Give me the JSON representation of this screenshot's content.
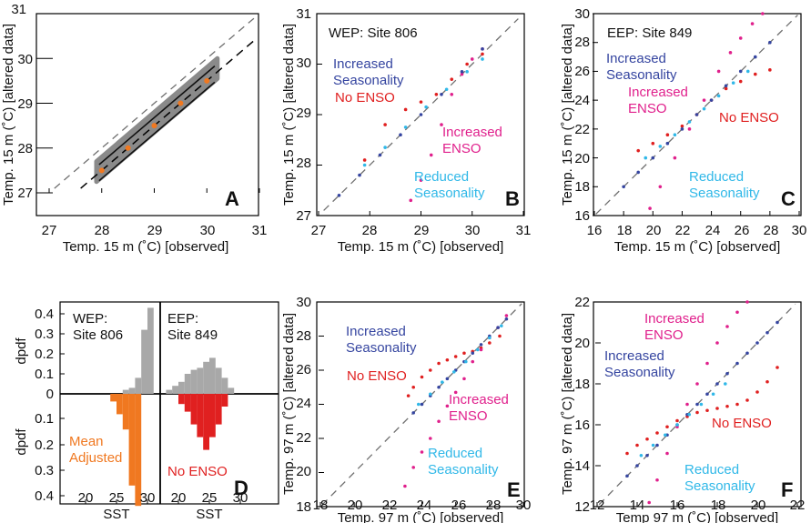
{
  "colors": {
    "observed": "#777777",
    "mean_adjusted": "#f07820",
    "no_enso": "#e02020",
    "increased_enso": "#e0208c",
    "increased_seasonality": "#3545a0",
    "reduced_seasonality": "#30b8e8",
    "hist_gray": "#a8a8a8"
  },
  "chart_data": [
    {
      "id": "A",
      "type": "scatter",
      "panel_label": "A",
      "xlabel": "Temp. 15 m (˚C) [observed]",
      "ylabel": "Temp. 15 m (˚C) [altered data]",
      "xlim": [
        27,
        31
      ],
      "ylim": [
        27,
        31
      ],
      "xticks": [
        "27",
        "28",
        "29",
        "30",
        "31"
      ],
      "yticks": [
        "27",
        "28",
        "29",
        "30",
        "31"
      ],
      "series": [
        {
          "name": "Mean Adjusted",
          "x": [
            28.0,
            28.5,
            29.0,
            29.5,
            30.0
          ],
          "y": [
            27.5,
            28.0,
            28.5,
            29.0,
            29.5
          ]
        }
      ]
    },
    {
      "id": "B",
      "type": "scatter",
      "panel_label": "B",
      "site": "WEP: Site 806",
      "xlabel": "Temp. 15 m (˚C) [observed]",
      "ylabel": "Temp. 15 m (˚C) [altered data]",
      "xlim": [
        27,
        31
      ],
      "ylim": [
        27,
        31
      ],
      "xticks": [
        "27",
        "28",
        "29",
        "30",
        "31"
      ],
      "yticks": [
        "27",
        "28",
        "29",
        "30",
        "31"
      ],
      "series": [
        {
          "name": "No ENSO",
          "x": [
            27.9,
            28.3,
            28.7,
            29.0,
            29.3,
            29.6,
            29.9,
            30.2
          ],
          "y": [
            28.1,
            28.8,
            29.1,
            29.25,
            29.4,
            29.7,
            30.0,
            30.2
          ]
        },
        {
          "name": "Increased ENSO",
          "x": [
            28.8,
            29.0,
            29.2,
            29.4,
            29.6,
            29.8,
            30.0,
            30.2
          ],
          "y": [
            27.3,
            27.7,
            28.2,
            28.8,
            29.4,
            29.8,
            30.1,
            30.3
          ]
        },
        {
          "name": "Increased Seasonality",
          "x": [
            27.4,
            27.8,
            28.2,
            28.6,
            29.0,
            29.4,
            29.8,
            30.2
          ],
          "y": [
            27.4,
            27.8,
            28.2,
            28.6,
            29.0,
            29.4,
            29.85,
            30.3
          ]
        },
        {
          "name": "Reduced Seasonality",
          "x": [
            27.9,
            28.3,
            28.7,
            29.1,
            29.5,
            29.9,
            30.2
          ],
          "y": [
            28.0,
            28.35,
            28.75,
            29.15,
            29.5,
            29.85,
            30.1
          ]
        }
      ]
    },
    {
      "id": "C",
      "type": "scatter",
      "panel_label": "C",
      "site": "EEP: Site 849",
      "xlabel": "Temp. 15 m (˚C) [observed]",
      "ylabel": "Temp. 15 m (˚C) [altered data]",
      "xlim": [
        16,
        30
      ],
      "ylim": [
        16,
        30
      ],
      "xticks": [
        "16",
        "18",
        "20",
        "22",
        "24",
        "26",
        "28",
        "30"
      ],
      "yticks": [
        "16",
        "18",
        "20",
        "22",
        "24",
        "26",
        "28",
        "30"
      ],
      "series": [
        {
          "name": "No ENSO",
          "x": [
            19.0,
            20.0,
            21.0,
            22.0,
            23.0,
            24.0,
            25.0,
            26.0,
            27.0,
            28.0
          ],
          "y": [
            20.5,
            21.0,
            21.6,
            22.2,
            23.0,
            24.0,
            24.8,
            25.3,
            25.8,
            26.1
          ]
        },
        {
          "name": "Increased ENSO",
          "x": [
            19.8,
            20.5,
            21.5,
            22.5,
            23.5,
            24.5,
            25.3,
            26.0,
            26.8,
            27.5
          ],
          "y": [
            16.5,
            18.0,
            20.0,
            22.0,
            24.0,
            26.0,
            27.3,
            28.3,
            29.3,
            30.0
          ]
        },
        {
          "name": "Increased Seasonality",
          "x": [
            18.0,
            19.0,
            20.0,
            21.0,
            22.0,
            23.0,
            24.0,
            25.0,
            26.0,
            27.0,
            28.0
          ],
          "y": [
            18.0,
            19.0,
            20.0,
            21.0,
            22.0,
            23.0,
            24.0,
            25.0,
            26.0,
            27.0,
            28.0
          ]
        },
        {
          "name": "Reduced Seasonality",
          "x": [
            19.5,
            20.5,
            21.5,
            22.5,
            23.5,
            24.5,
            25.5,
            26.5
          ],
          "y": [
            20.0,
            20.8,
            21.6,
            22.5,
            23.4,
            24.3,
            25.2,
            26.0
          ]
        }
      ]
    },
    {
      "id": "D",
      "type": "bar",
      "panel_label": "D",
      "ylabel": "dpdf",
      "xlabel": "SST",
      "xticks": [
        "20",
        "25",
        "30"
      ],
      "yticks_top": [
        "0.4",
        "0.3",
        "0.2",
        "0.1",
        "0"
      ],
      "yticks_bottom": [
        "0.1",
        "0.2",
        "0.3",
        "0.4"
      ],
      "sites": [
        "WEP:\nSite 806",
        "EEP:\nSite 849"
      ],
      "bin_width": 1,
      "series": [
        {
          "name": "WEP observed",
          "panel": "left",
          "direction": "up",
          "bins": [
            26,
            27,
            28,
            29,
            30
          ],
          "values": [
            0.02,
            0.03,
            0.08,
            0.32,
            0.43
          ]
        },
        {
          "name": "Mean Adjusted",
          "panel": "left",
          "direction": "down",
          "bins": [
            24,
            25,
            26,
            27,
            28
          ],
          "values": [
            0.03,
            0.08,
            0.14,
            0.36,
            0.44
          ]
        },
        {
          "name": "EEP observed",
          "panel": "right",
          "direction": "up",
          "bins": [
            18,
            19,
            20,
            21,
            22,
            23,
            24,
            25,
            26,
            27,
            28
          ],
          "values": [
            0.02,
            0.04,
            0.06,
            0.1,
            0.12,
            0.13,
            0.16,
            0.18,
            0.13,
            0.08,
            0.03
          ]
        },
        {
          "name": "No ENSO",
          "panel": "right",
          "direction": "down",
          "bins": [
            20,
            21,
            22,
            23,
            24,
            25,
            26,
            27
          ],
          "values": [
            0.04,
            0.07,
            0.12,
            0.17,
            0.22,
            0.17,
            0.12,
            0.05
          ]
        }
      ]
    },
    {
      "id": "E",
      "type": "scatter",
      "panel_label": "E",
      "xlabel": "Temp. 97 m (˚C) [observed]",
      "ylabel": "Temp. 97 m (˚C) [altered data]",
      "xlim": [
        18,
        30
      ],
      "ylim": [
        18,
        30
      ],
      "xticks": [
        "18",
        "20",
        "22",
        "24",
        "26",
        "28",
        "30"
      ],
      "yticks": [
        "18",
        "20",
        "22",
        "24",
        "26",
        "28",
        "30"
      ],
      "series": [
        {
          "name": "No ENSO",
          "x": [
            23.2,
            23.5,
            24.0,
            24.5,
            25.0,
            25.5,
            26.0,
            26.5,
            27.0,
            27.5,
            28.0,
            28.6
          ],
          "y": [
            24.5,
            25.0,
            25.6,
            26.0,
            26.4,
            26.6,
            26.8,
            27.0,
            27.1,
            27.3,
            27.6,
            28.0
          ]
        },
        {
          "name": "Increased ENSO",
          "x": [
            23.0,
            23.5,
            24.0,
            24.5,
            25.0,
            25.5,
            26.0,
            26.5,
            27.0,
            27.5,
            28.0,
            28.5,
            29.0
          ],
          "y": [
            19.2,
            20.3,
            21.2,
            22.0,
            23.0,
            23.9,
            24.7,
            25.5,
            26.5,
            27.2,
            27.9,
            28.5,
            29.2
          ]
        },
        {
          "name": "Increased Seasonality",
          "x": [
            23.5,
            24.0,
            24.5,
            25.0,
            25.5,
            26.0,
            26.5,
            27.0,
            27.5,
            28.0,
            28.5,
            29.0
          ],
          "y": [
            23.5,
            24.0,
            24.5,
            25.0,
            25.5,
            26.0,
            26.5,
            27.0,
            27.5,
            28.0,
            28.5,
            29.0
          ]
        },
        {
          "name": "Reduced Seasonality",
          "x": [
            23.8,
            24.5,
            25.2,
            25.9,
            26.6,
            27.3,
            28.0,
            28.7
          ],
          "y": [
            24.0,
            24.6,
            25.3,
            25.9,
            26.5,
            27.2,
            27.9,
            28.6
          ]
        }
      ]
    },
    {
      "id": "F",
      "type": "scatter",
      "panel_label": "F",
      "xlabel": "Temp 97 m (˚C) [observed]",
      "ylabel": "Temp. 97 m (˚C) [altered data]",
      "xlim": [
        12,
        22
      ],
      "ylim": [
        12,
        22
      ],
      "xticks": [
        "12",
        "14",
        "16",
        "18",
        "20",
        "22"
      ],
      "yticks": [
        "12",
        "14",
        "16",
        "18",
        "20",
        "22"
      ],
      "series": [
        {
          "name": "No ENSO",
          "x": [
            13.5,
            14.0,
            14.5,
            15.0,
            15.5,
            16.0,
            16.5,
            17.0,
            17.5,
            18.0,
            18.5,
            19.0,
            19.5,
            20.0,
            20.5,
            21.0
          ],
          "y": [
            14.6,
            15.0,
            15.3,
            15.6,
            15.9,
            16.2,
            16.4,
            16.6,
            16.7,
            16.8,
            16.9,
            17.0,
            17.2,
            17.6,
            18.1,
            18.8
          ]
        },
        {
          "name": "Increased ENSO",
          "x": [
            14.6,
            15.0,
            15.5,
            16.0,
            16.5,
            17.0,
            17.5,
            18.0,
            18.5,
            19.0,
            19.5
          ],
          "y": [
            12.2,
            13.3,
            14.6,
            15.9,
            17.0,
            18.0,
            19.0,
            20.0,
            20.8,
            21.5,
            22.0
          ]
        },
        {
          "name": "Increased Seasonality",
          "x": [
            13.5,
            14.0,
            14.5,
            15.0,
            15.5,
            16.0,
            16.5,
            17.0,
            17.5,
            18.0,
            18.5,
            19.0,
            19.5,
            20.0,
            20.5,
            21.0
          ],
          "y": [
            13.5,
            14.0,
            14.5,
            15.0,
            15.5,
            16.0,
            16.5,
            17.0,
            17.5,
            18.0,
            18.5,
            19.0,
            19.5,
            20.0,
            20.5,
            21.0
          ]
        },
        {
          "name": "Reduced Seasonality",
          "x": [
            14.2,
            14.8,
            15.4,
            16.0,
            16.6,
            17.2,
            17.8,
            18.4
          ],
          "y": [
            14.5,
            15.0,
            15.5,
            16.0,
            16.5,
            17.0,
            17.5,
            18.0
          ]
        }
      ]
    }
  ]
}
